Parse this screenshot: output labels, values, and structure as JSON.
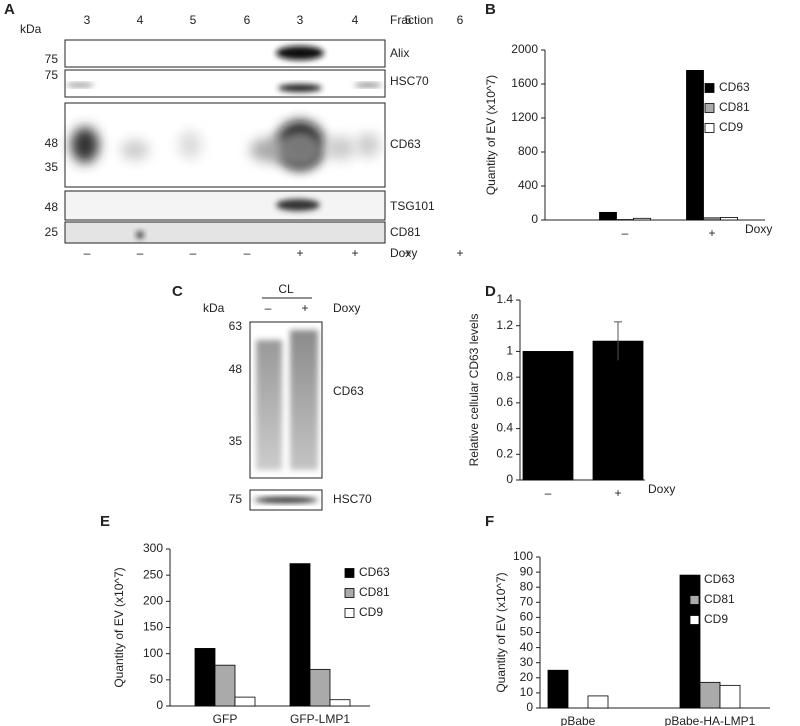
{
  "blots": {
    "A": {
      "panel": "A",
      "kda": "kDa",
      "fraction_label": "Fraction",
      "fractions": [
        "3",
        "4",
        "5",
        "6",
        "3",
        "4",
        "5",
        "6"
      ],
      "markers": [
        "75",
        "75",
        "48",
        "35",
        "48",
        "25"
      ],
      "proteins": [
        "Alix",
        "HSC70",
        "CD63",
        "TSG101",
        "CD81"
      ],
      "treatment": [
        "–",
        "–",
        "–",
        "–",
        "+",
        "+",
        "+",
        "+"
      ],
      "treatment_label": "Doxy"
    },
    "C": {
      "panel": "C",
      "kda": "kDa",
      "group": "CL",
      "treatment": [
        "–",
        "+"
      ],
      "treatment_label": "Doxy",
      "markers": [
        "63",
        "48",
        "35",
        "75"
      ],
      "proteins": [
        "CD63",
        "HSC70"
      ]
    }
  },
  "chart_data": [
    {
      "type": "bar",
      "panel": "B",
      "ylabel": "Quantity of EV (x10^7)",
      "annotation": "Doxy",
      "categories": [
        "–",
        "+"
      ],
      "series": [
        {
          "name": "CD63",
          "color": "#000000",
          "values": [
            90,
            1760
          ]
        },
        {
          "name": "CD81",
          "color": "#aaaaaa",
          "values": [
            5,
            25
          ]
        },
        {
          "name": "CD9",
          "color": "#ffffff",
          "values": [
            20,
            30
          ]
        }
      ],
      "ylim": [
        0,
        2000
      ],
      "yticks": [
        0,
        400,
        800,
        1200,
        1600,
        2000
      ]
    },
    {
      "type": "bar",
      "panel": "D",
      "ylabel": "Relative cellular CD63 levels",
      "annotation": "Doxy",
      "categories": [
        "–",
        "+"
      ],
      "series": [
        {
          "color": "#000000",
          "values": [
            1,
            1.08
          ],
          "errors": [
            0,
            0.15
          ]
        }
      ],
      "ylim": [
        0,
        1.4
      ],
      "yticks": [
        0,
        0.2,
        0.4,
        0.6,
        0.8,
        1,
        1.2,
        1.4
      ]
    },
    {
      "type": "bar",
      "panel": "E",
      "ylabel": "Quantity of EV (x10^7)",
      "categories": [
        "GFP",
        "GFP-LMP1"
      ],
      "series": [
        {
          "name": "CD63",
          "color": "#000000",
          "values": [
            110,
            272
          ]
        },
        {
          "name": "CD81",
          "color": "#aaaaaa",
          "values": [
            78,
            70
          ]
        },
        {
          "name": "CD9",
          "color": "#ffffff",
          "values": [
            17,
            12
          ]
        }
      ],
      "ylim": [
        0,
        300
      ],
      "yticks": [
        0,
        50,
        100,
        150,
        200,
        250,
        300
      ]
    },
    {
      "type": "bar",
      "panel": "F",
      "ylabel": "Quantity of EV (x10^7)",
      "categories": [
        "pBabe",
        "pBabe-HA-LMP1"
      ],
      "series": [
        {
          "name": "CD63",
          "color": "#000000",
          "values": [
            25,
            88
          ]
        },
        {
          "name": "CD81",
          "color": "#aaaaaa",
          "values": [
            0,
            17
          ]
        },
        {
          "name": "CD9",
          "color": "#ffffff",
          "values": [
            8,
            15
          ]
        }
      ],
      "ylim": [
        0,
        100
      ],
      "yticks": [
        0,
        10,
        20,
        30,
        40,
        50,
        60,
        70,
        80,
        90,
        100
      ]
    }
  ]
}
